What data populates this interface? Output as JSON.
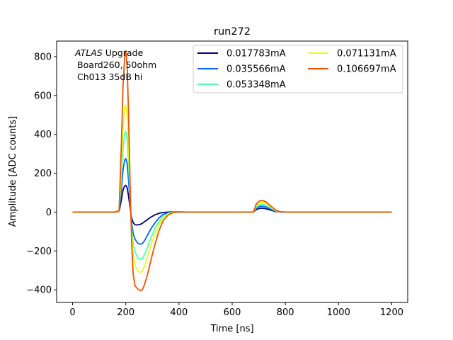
{
  "chart_data": {
    "type": "line",
    "title": "run272",
    "xlabel": "Time [ns]",
    "ylabel": "Amplitude [ADC counts]",
    "xlim": [
      -60,
      1260
    ],
    "ylim": [
      -465,
      880
    ],
    "x_ticks": [
      0,
      200,
      400,
      600,
      800,
      1000,
      1200
    ],
    "y_ticks": [
      -400,
      -200,
      0,
      200,
      400,
      600,
      800
    ],
    "grid": false,
    "legend_position": "top-right",
    "legend_columns": 2,
    "annotation": {
      "line1_italic": "ATLAS",
      "line1_rest": " Upgrade",
      "line2": "Board260, 50ohm",
      "line3": "Ch013 35dB hi"
    },
    "x": [
      0,
      160,
      175,
      183,
      190,
      196,
      200,
      205,
      210,
      216,
      222,
      228,
      235,
      245,
      255,
      262,
      270,
      282,
      295,
      310,
      325,
      340,
      360,
      380,
      400,
      430,
      460,
      680,
      690,
      700,
      710,
      720,
      730,
      740,
      750,
      760,
      770,
      780,
      800,
      1200
    ],
    "series": [
      {
        "name": "0.017783mA",
        "color": "#00007f",
        "values": [
          0,
          0,
          2,
          60,
          115,
          135,
          138,
          125,
          85,
          25,
          -30,
          -55,
          -65,
          -66,
          -63,
          -58,
          -50,
          -38,
          -25,
          -14,
          -6,
          -2,
          0,
          1,
          1,
          0,
          0,
          0,
          12,
          18,
          20,
          19,
          16,
          12,
          8,
          4,
          2,
          1,
          0,
          0
        ]
      },
      {
        "name": "0.035566mA",
        "color": "#0062ff",
        "values": [
          0,
          0,
          3,
          110,
          220,
          268,
          275,
          250,
          170,
          50,
          -55,
          -110,
          -140,
          -160,
          -165,
          -162,
          -148,
          -118,
          -85,
          -55,
          -30,
          -12,
          -3,
          0,
          1,
          0,
          0,
          0,
          18,
          28,
          30,
          29,
          25,
          18,
          12,
          6,
          3,
          1,
          0,
          0
        ]
      },
      {
        "name": "0.053348mA",
        "color": "#4dffaa",
        "values": [
          0,
          0,
          4,
          170,
          330,
          405,
          415,
          380,
          260,
          80,
          -80,
          -165,
          -205,
          -235,
          -245,
          -240,
          -220,
          -178,
          -130,
          -85,
          -48,
          -22,
          -6,
          0,
          1,
          0,
          0,
          0,
          24,
          36,
          40,
          38,
          33,
          25,
          17,
          9,
          4,
          1,
          0,
          0
        ]
      },
      {
        "name": "0.071131mA",
        "color": "#e2ff15",
        "values": [
          0,
          0,
          5,
          220,
          440,
          540,
          550,
          505,
          345,
          105,
          -105,
          -220,
          -275,
          -300,
          -310,
          -305,
          -280,
          -230,
          -170,
          -112,
          -65,
          -30,
          -9,
          0,
          1,
          0,
          0,
          0,
          30,
          45,
          50,
          48,
          42,
          32,
          22,
          12,
          5,
          2,
          0,
          0
        ]
      },
      {
        "name": "0.106697mA",
        "color": "#f05000",
        "values": [
          0,
          0,
          8,
          330,
          660,
          800,
          830,
          760,
          520,
          160,
          -160,
          -320,
          -380,
          -395,
          -405,
          -400,
          -375,
          -320,
          -245,
          -165,
          -95,
          -45,
          -14,
          -1,
          1,
          0,
          0,
          0,
          40,
          55,
          60,
          57,
          50,
          38,
          26,
          14,
          6,
          2,
          0,
          0
        ]
      }
    ]
  }
}
